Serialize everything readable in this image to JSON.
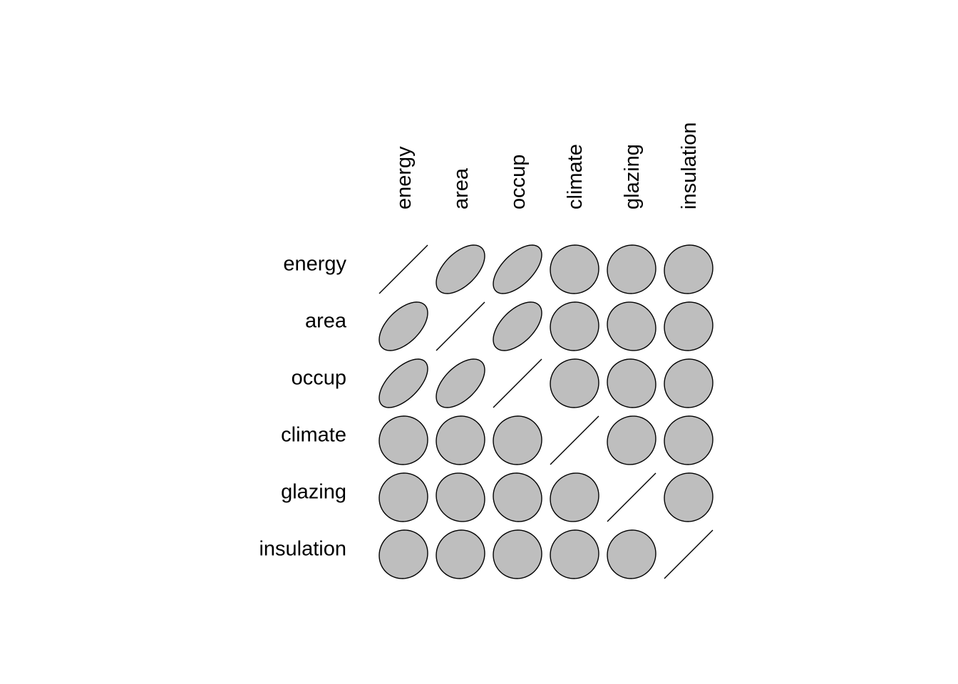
{
  "chart_data": {
    "type": "heatmap",
    "subtype": "correlation-ellipse-matrix",
    "variables": [
      "energy",
      "area",
      "occup",
      "climate",
      "glazing",
      "insulation"
    ],
    "row_labels": [
      "energy",
      "area",
      "occup",
      "climate",
      "glazing",
      "insulation"
    ],
    "column_labels": [
      "energy",
      "area",
      "occup",
      "climate",
      "glazing",
      "insulation"
    ],
    "values": [
      [
        1.0,
        0.55,
        0.6,
        0.02,
        0.03,
        0.05
      ],
      [
        0.55,
        1.0,
        0.55,
        0.03,
        -0.08,
        0.04
      ],
      [
        0.6,
        0.55,
        1.0,
        0.02,
        -0.05,
        0.02
      ],
      [
        0.02,
        0.03,
        0.02,
        1.0,
        0.07,
        0.03
      ],
      [
        0.03,
        -0.08,
        -0.05,
        0.07,
        1.0,
        0.03
      ],
      [
        0.05,
        0.04,
        0.02,
        0.03,
        0.03,
        1.0
      ]
    ],
    "ellipse_fill": "#bebebe",
    "ellipse_stroke": "#000000",
    "background": "#ffffff",
    "title": "",
    "xlabel": "",
    "ylabel": "",
    "legend": "none",
    "grid": false
  }
}
